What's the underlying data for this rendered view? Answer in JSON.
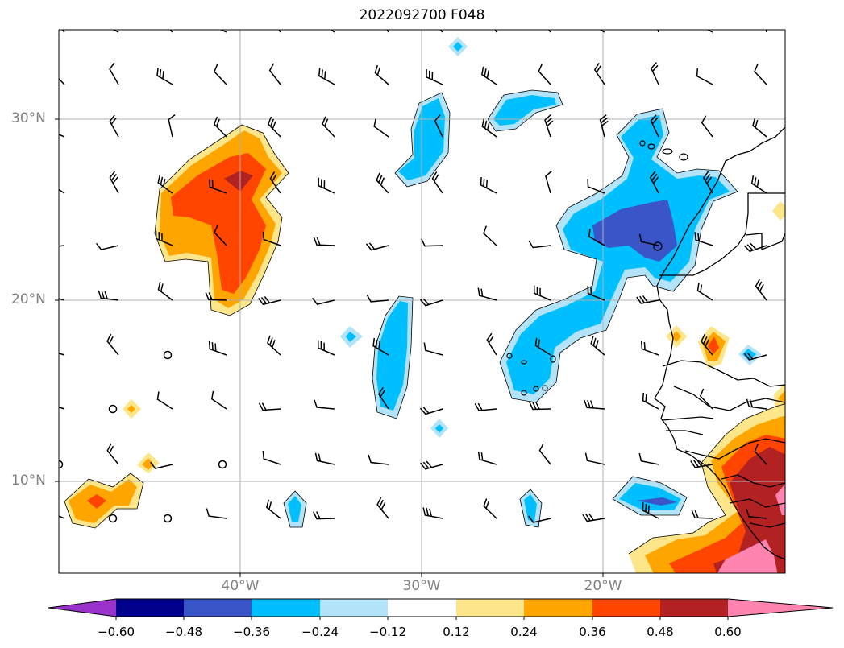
{
  "title": "2022092700 F048",
  "lat_labels": [
    "30°N",
    "20°N",
    "10°N"
  ],
  "lon_labels": [
    "40°W",
    "30°W",
    "20°W"
  ],
  "colorbar": {
    "ticks": [
      "−0.60",
      "−0.48",
      "−0.36",
      "−0.24",
      "−0.12",
      "0.12",
      "0.24",
      "0.36",
      "0.48",
      "0.60"
    ],
    "levels": [
      -0.6,
      -0.48,
      -0.36,
      -0.24,
      -0.12,
      0.12,
      0.24,
      0.36,
      0.48,
      0.6
    ],
    "colors": [
      "#9933cc",
      "#00008b",
      "#3a55c8",
      "#00bfff",
      "#b3e3f8",
      "#ffffff",
      "#fde68a",
      "#ffa500",
      "#ff4500",
      "#b22222",
      "#ff85b0"
    ],
    "extend": "both"
  },
  "map": {
    "lon_range": [
      -50,
      -10
    ],
    "lat_range": [
      5,
      35
    ],
    "gridlines": true,
    "projection": "PlateCarree"
  }
}
